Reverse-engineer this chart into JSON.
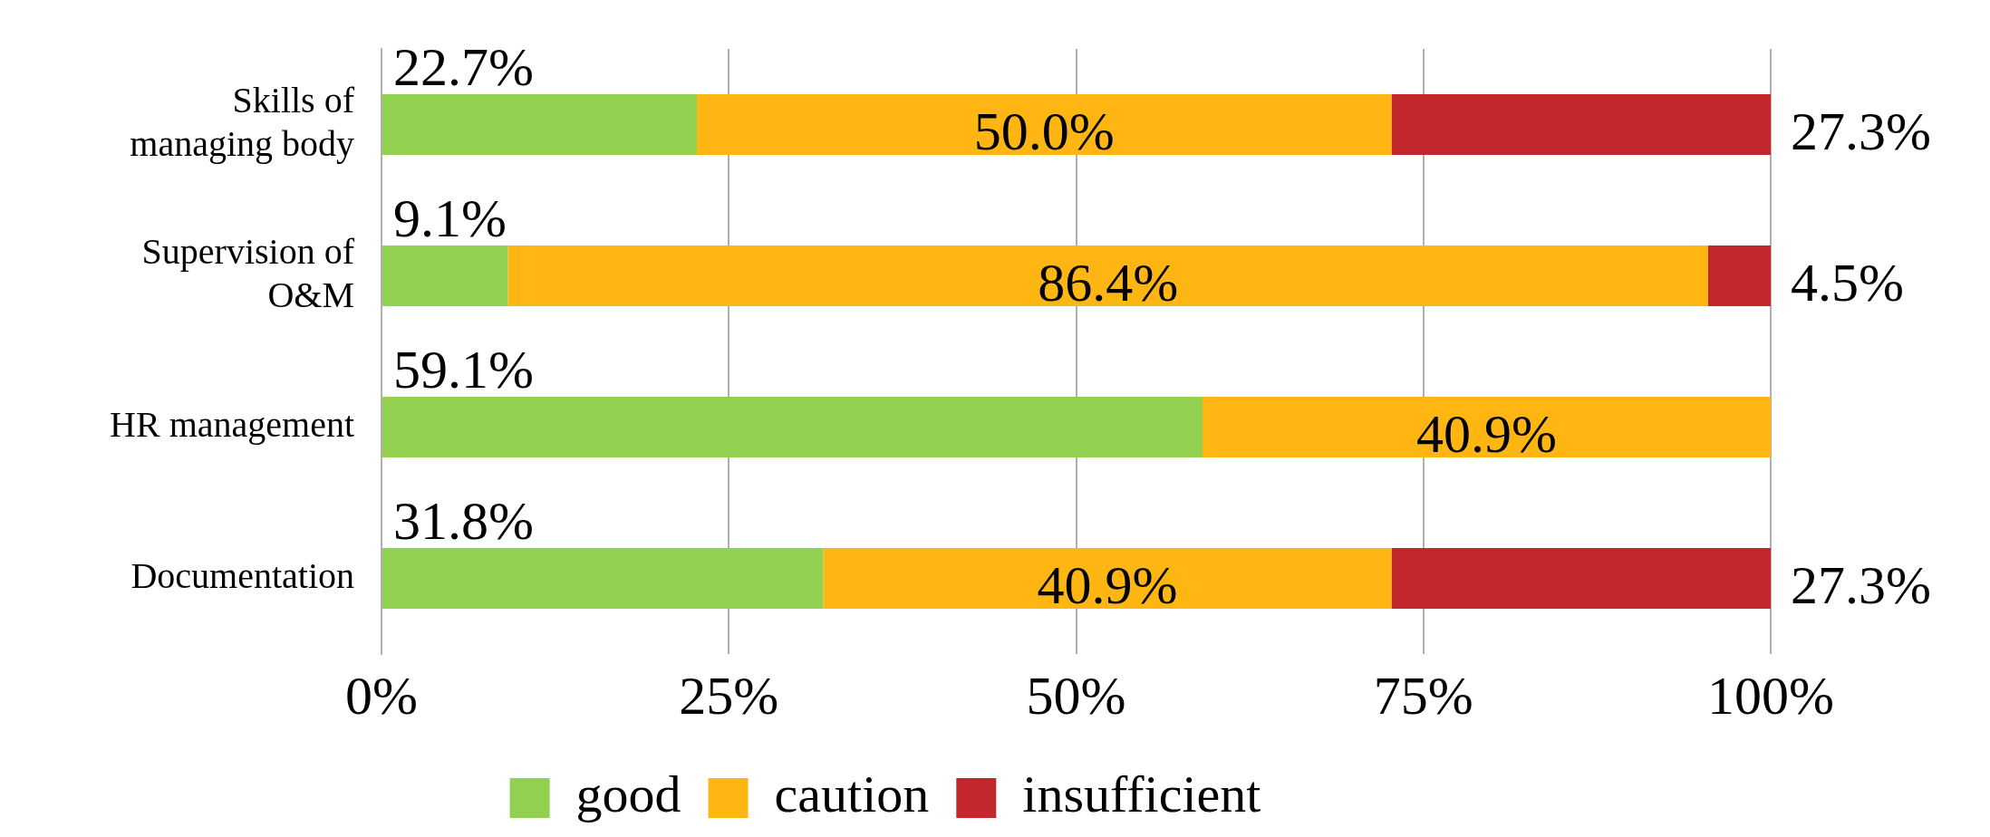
{
  "chart_data": {
    "type": "bar",
    "orientation": "horizontal",
    "stacked": true,
    "categories": [
      "Skills of managing body",
      "Supervision of O&M",
      "HR management",
      "Documentation"
    ],
    "series": [
      {
        "name": "good",
        "color": "#92d050",
        "values": [
          22.7,
          9.1,
          59.1,
          31.8
        ],
        "value_labels": [
          "22.7%",
          "9.1%",
          "59.1%",
          "31.8%"
        ]
      },
      {
        "name": "caution",
        "color": "#ffb612",
        "values": [
          50.0,
          86.4,
          40.9,
          40.9
        ],
        "value_labels": [
          "50.0%",
          "86.4%",
          "40.9%",
          "40.9%"
        ]
      },
      {
        "name": "insufficient",
        "color": "#c3282d",
        "values": [
          27.3,
          4.5,
          null,
          27.3
        ],
        "value_labels": [
          "27.3%",
          "4.5%",
          null,
          "27.3%"
        ]
      }
    ],
    "xlim": [
      0,
      100
    ],
    "xticks": [
      {
        "value": 0,
        "label": "0%"
      },
      {
        "value": 25,
        "label": "25%"
      },
      {
        "value": 50,
        "label": "50%"
      },
      {
        "value": 75,
        "label": "75%"
      },
      {
        "value": 100,
        "label": "100%"
      }
    ],
    "grid": "x",
    "legend": "bottom"
  }
}
